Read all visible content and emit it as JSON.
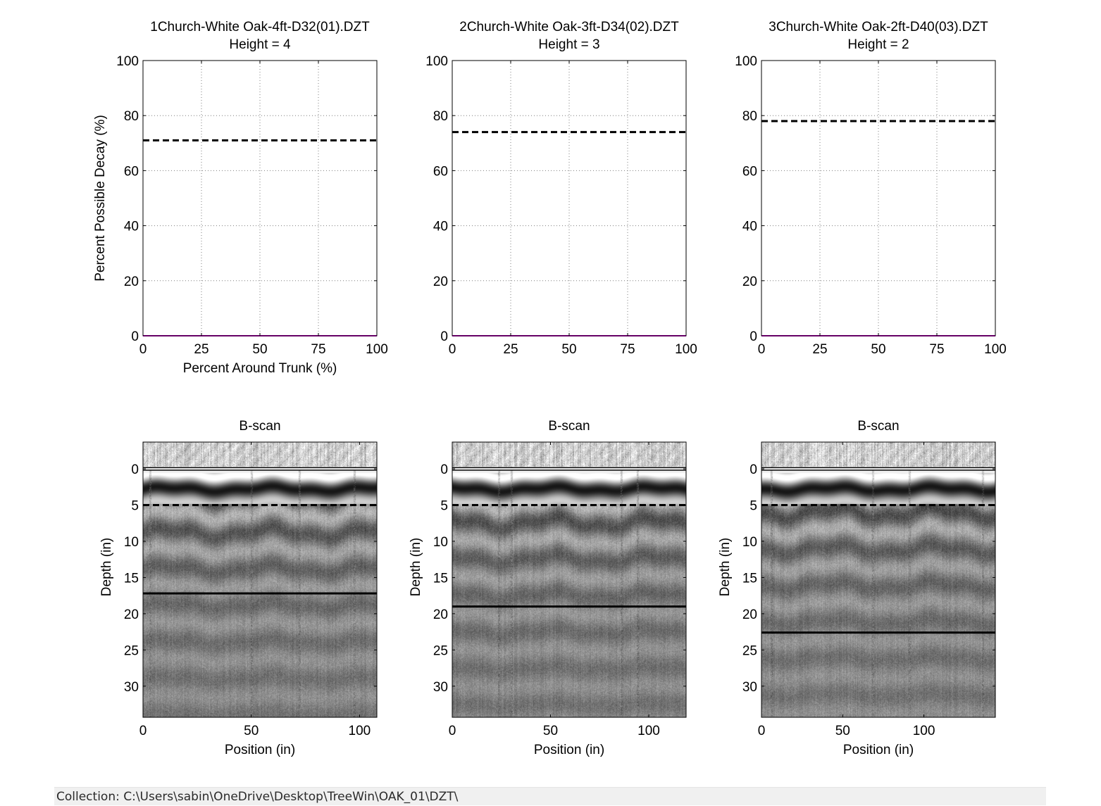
{
  "window": {
    "status_label": "Collection:",
    "status_path": "C:\\Users\\sabin\\OneDrive\\Desktop\\TreeWin\\OAK_01\\DZT\\"
  },
  "colors": {
    "decay_line": "#cc00cc",
    "threshold_line": "#000000",
    "grid": "#7f7f7f",
    "image_gray": "#808080"
  },
  "chart_data": [
    {
      "type": "line",
      "title": "1Church-White Oak-4ft-D32(01).DZT",
      "subtitle": "Height = 4",
      "xlabel": "Percent Around Trunk (%)",
      "ylabel": "Percent Possible Decay (%)",
      "xlim": [
        0,
        100
      ],
      "ylim": [
        0,
        100
      ],
      "xticks": [
        "0",
        "25",
        "50",
        "75",
        "100"
      ],
      "yticks": [
        "0",
        "20",
        "40",
        "60",
        "80",
        "100"
      ],
      "grid": true,
      "series": [
        {
          "style": "solid",
          "x": [
            0,
            100
          ],
          "y": [
            0,
            0
          ]
        },
        {
          "style": "dashed",
          "x": [
            0,
            100
          ],
          "y": [
            71,
            71
          ]
        }
      ]
    },
    {
      "type": "line",
      "title": "2Church-White Oak-3ft-D34(02).DZT",
      "subtitle": "Height = 3",
      "xlabel": "",
      "ylabel": "",
      "xlim": [
        0,
        100
      ],
      "ylim": [
        0,
        100
      ],
      "xticks": [
        "0",
        "25",
        "50",
        "75",
        "100"
      ],
      "yticks": [
        "0",
        "20",
        "40",
        "60",
        "80",
        "100"
      ],
      "grid": true,
      "series": [
        {
          "style": "solid",
          "x": [
            0,
            100
          ],
          "y": [
            0,
            0
          ]
        },
        {
          "style": "dashed",
          "x": [
            0,
            100
          ],
          "y": [
            74,
            74
          ]
        }
      ]
    },
    {
      "type": "line",
      "title": "3Church-White Oak-2ft-D40(03).DZT",
      "subtitle": "Height = 2",
      "xlabel": "",
      "ylabel": "",
      "xlim": [
        0,
        100
      ],
      "ylim": [
        0,
        100
      ],
      "xticks": [
        "0",
        "25",
        "50",
        "75",
        "100"
      ],
      "yticks": [
        "0",
        "20",
        "40",
        "60",
        "80",
        "100"
      ],
      "grid": true,
      "series": [
        {
          "style": "solid",
          "x": [
            0,
            100
          ],
          "y": [
            0,
            0
          ]
        },
        {
          "style": "dashed",
          "x": [
            0,
            100
          ],
          "y": [
            78,
            78
          ]
        }
      ]
    },
    {
      "type": "heatmap",
      "title": "B-scan",
      "xlabel": "Position (in)",
      "ylabel": "Depth (in)",
      "xlim": [
        0,
        108
      ],
      "ylim": [
        -3.7,
        34.3
      ],
      "xticks": [
        "0",
        "50",
        "100"
      ],
      "yticks": [
        "0",
        "5",
        "10",
        "15",
        "20",
        "25",
        "30"
      ],
      "surface_depth": 0,
      "dashed_depth": 5,
      "solid_depth": 17.2
    },
    {
      "type": "heatmap",
      "title": "B-scan",
      "xlabel": "Position (in)",
      "ylabel": "Depth (in)",
      "xlim": [
        0,
        119
      ],
      "ylim": [
        -3.7,
        34.3
      ],
      "xticks": [
        "0",
        "50",
        "100"
      ],
      "yticks": [
        "0",
        "5",
        "10",
        "15",
        "20",
        "25",
        "30"
      ],
      "surface_depth": 0,
      "dashed_depth": 5,
      "solid_depth": 19
    },
    {
      "type": "heatmap",
      "title": "B-scan",
      "xlabel": "Position (in)",
      "ylabel": "Depth (in)",
      "xlim": [
        0,
        144
      ],
      "ylim": [
        -3.7,
        34.3
      ],
      "xticks": [
        "0",
        "50",
        "100"
      ],
      "yticks": [
        "0",
        "5",
        "10",
        "15",
        "20",
        "25",
        "30"
      ],
      "surface_depth": 0,
      "dashed_depth": 5,
      "solid_depth": 22.6
    }
  ]
}
